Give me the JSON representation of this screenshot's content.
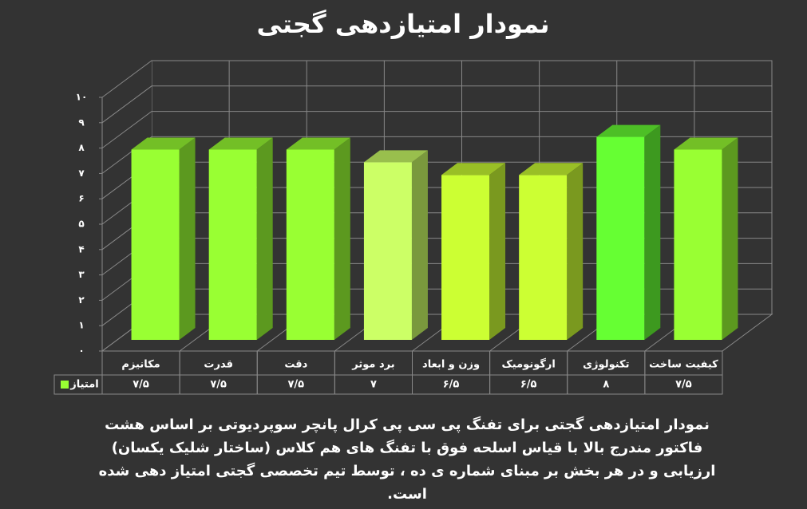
{
  "chart_data": {
    "type": "bar3d",
    "title": "نمودار امتیازدهی گجتی",
    "categories": [
      "مکانیزم",
      "قدرت",
      "دقت",
      "برد موثر",
      "وزن و ابعاد",
      "ارگونومیک",
      "تکنولوژی",
      "کیفیت ساخت"
    ],
    "series": [
      {
        "name": "امتیاز",
        "color": "#99ff33",
        "colors": [
          "#99ff33",
          "#99ff33",
          "#99ff33",
          "#ccff66",
          "#ccff33",
          "#ccff33",
          "#66ff33",
          "#99ff33"
        ],
        "values": [
          7.5,
          7.5,
          7.5,
          7,
          6.5,
          6.5,
          8,
          7.5
        ],
        "value_labels": [
          "۷/۵",
          "۷/۵",
          "۷/۵",
          "۷",
          "۶/۵",
          "۶/۵",
          "۸",
          "۷/۵"
        ]
      }
    ],
    "ylim": [
      0,
      10
    ],
    "yticks": [
      {
        "value": 0,
        "label": "۰"
      },
      {
        "value": 1,
        "label": "۱"
      },
      {
        "value": 2,
        "label": "۲"
      },
      {
        "value": 3,
        "label": "۳"
      },
      {
        "value": 4,
        "label": "۴"
      },
      {
        "value": 5,
        "label": "۵"
      },
      {
        "value": 6,
        "label": "۶"
      },
      {
        "value": 7,
        "label": "۷"
      },
      {
        "value": 8,
        "label": "۸"
      },
      {
        "value": 9,
        "label": "۹"
      },
      {
        "value": 10,
        "label": "۱۰"
      }
    ],
    "grid": true,
    "caption": "نمودار امتیازدهی گجتی برای تفنگ پی سی پی کرال پانچر سوپردیوتی بر اساس هشت فاکتور مندرج بالا با قیاس اسلحه فوق با تفنگ های هم کلاس (ساختار شلیک یکسان) ارزیابی و در هر بخش بر مبنای شماره ی ده ، توسط تیم تخصصی گجتی امتیاز دهی شده است."
  }
}
